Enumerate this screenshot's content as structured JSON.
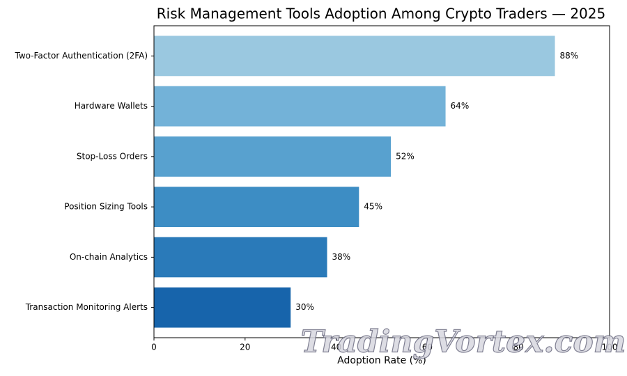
{
  "chart_data": {
    "type": "hbar",
    "title": "Risk Management Tools Adoption Among Crypto Traders — 2025",
    "x_label": "Adoption Rate (%)",
    "categories": [
      "Two-Factor Authentication (2FA)",
      "Hardware Wallets",
      "Stop-Loss Orders",
      "Position Sizing Tools",
      "On-chain Analytics",
      "Transaction Monitoring Alerts"
    ],
    "values": [
      88,
      64,
      52,
      45,
      38,
      30
    ],
    "value_labels": [
      "88%",
      "64%",
      "52%",
      "45%",
      "38%",
      "30%"
    ],
    "colors": [
      "#9ac8e0",
      "#73b2d8",
      "#58a1cf",
      "#3d8dc4",
      "#2a7ab9",
      "#1764ab"
    ],
    "xlim": [
      0,
      100
    ],
    "xticks": [
      0,
      20,
      40,
      60,
      80,
      100
    ],
    "watermark": "TradingVortex.com"
  }
}
